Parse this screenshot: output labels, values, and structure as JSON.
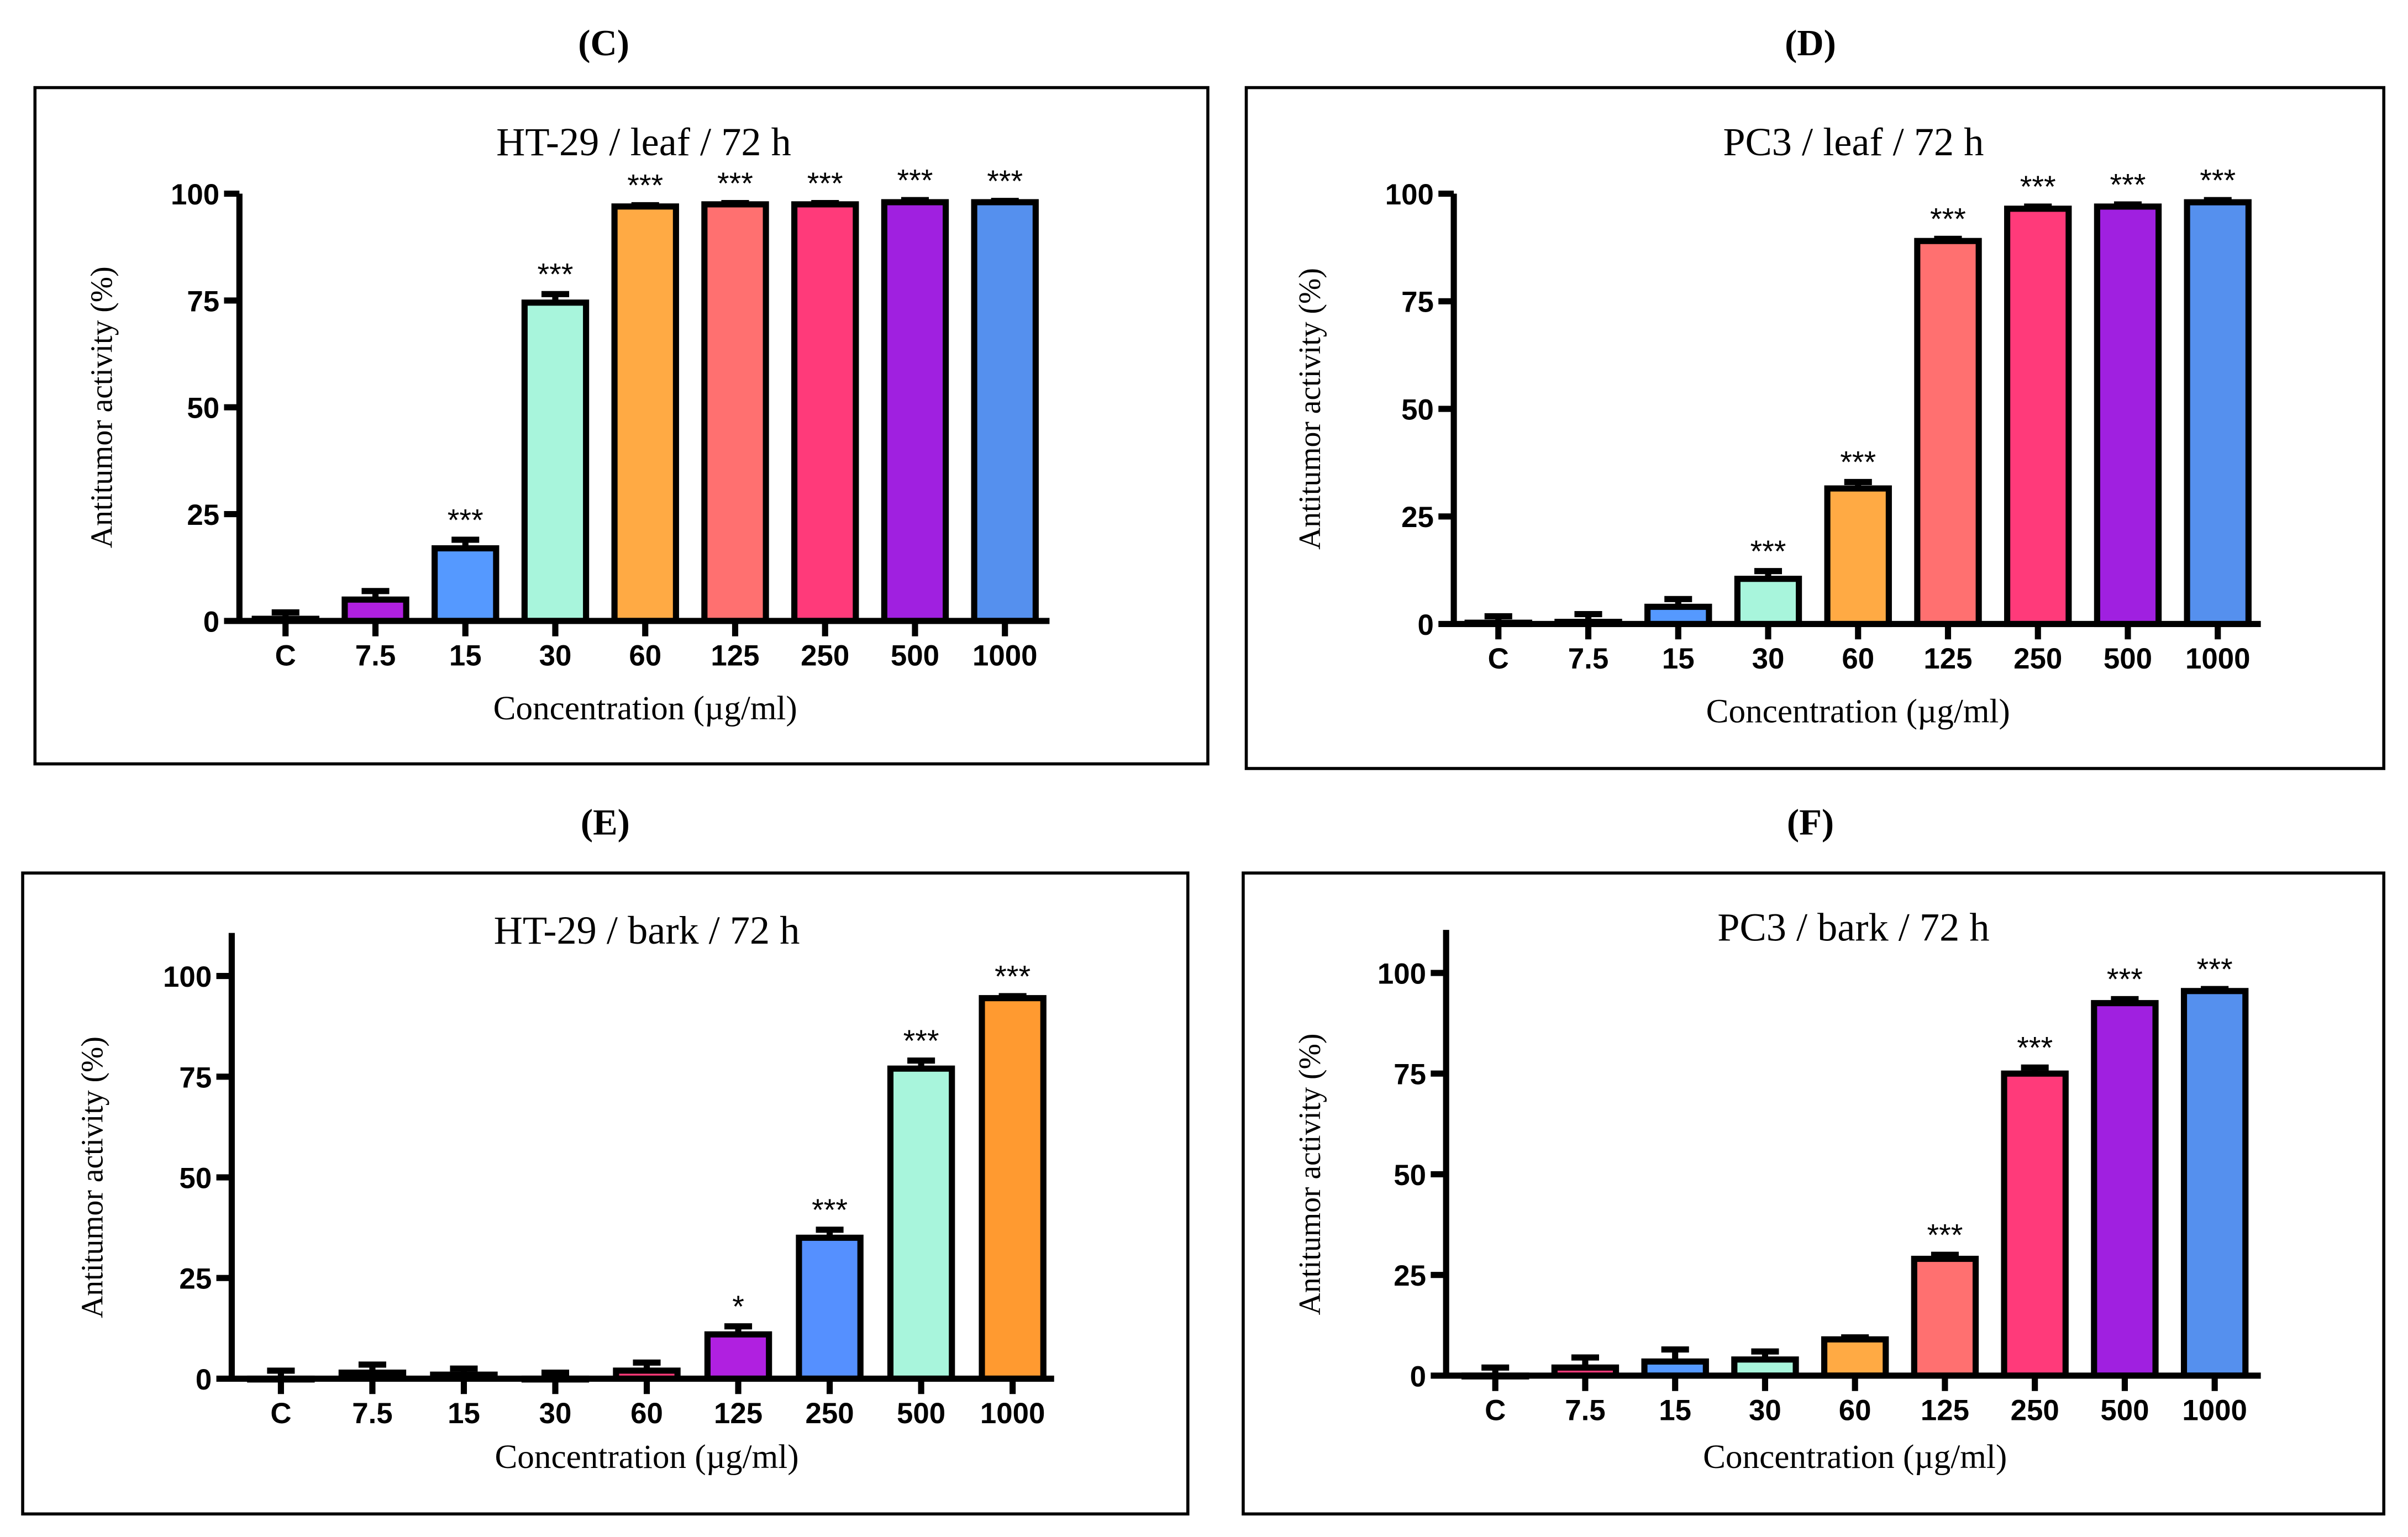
{
  "chart_data": [
    {
      "type": "bar",
      "panel": "(C)",
      "title": "HT-29 / leaf / 72 h",
      "xlabel": "Concentration (µg/ml)",
      "ylabel": "Antitumor activity (%)",
      "categories": [
        "C",
        "7.5",
        "15",
        "30",
        "60",
        "125",
        "250",
        "500",
        "1000"
      ],
      "values": [
        0.5,
        5,
        17,
        74.5,
        97,
        97.5,
        97.5,
        98,
        98
      ],
      "errors": [
        1.5,
        2,
        2,
        2,
        0.3,
        0.3,
        0.3,
        0.5,
        0.3
      ],
      "significance": [
        "",
        "",
        "***",
        "***",
        "***",
        "***",
        "***",
        "***",
        "***"
      ],
      "colors": [
        "#ffffff",
        "#b020e0",
        "#5599ff",
        "#a8f5dc",
        "#ffaa44",
        "#ff7070",
        "#ff3a7a",
        "#a020e0",
        "#5590ee"
      ],
      "yticks": [
        0,
        25,
        50,
        75,
        100
      ],
      "ylim": [
        0,
        100
      ]
    },
    {
      "type": "bar",
      "panel": "(D)",
      "title": "PC3 / leaf / 72 h",
      "xlabel": "Concentration (µg/ml)",
      "ylabel": "Antitumor activity (%)",
      "categories": [
        "C",
        "7.5",
        "15",
        "30",
        "60",
        "125",
        "250",
        "500",
        "1000"
      ],
      "values": [
        0.3,
        0.5,
        4,
        10.5,
        31.5,
        89,
        96.5,
        97,
        98
      ],
      "errors": [
        1.5,
        1.8,
        1.8,
        1.8,
        1.5,
        0.5,
        0.5,
        0.5,
        0.5
      ],
      "significance": [
        "",
        "",
        "",
        "***",
        "***",
        "***",
        "***",
        "***",
        "***"
      ],
      "colors": [
        "#ffffff",
        "#b020e0",
        "#5599ff",
        "#a8f5dc",
        "#ffaa44",
        "#ff7070",
        "#ff3a7a",
        "#a020e0",
        "#5590ee"
      ],
      "yticks": [
        0,
        25,
        50,
        75,
        100
      ],
      "ylim": [
        0,
        100
      ]
    },
    {
      "type": "bar",
      "panel": "(E)",
      "title": "HT-29 / bark / 72 h",
      "xlabel": "Concentration (µg/ml)",
      "ylabel": "Antitumor activity (%)",
      "categories": [
        "C",
        "7.5",
        "15",
        "30",
        "60",
        "125",
        "250",
        "500",
        "1000"
      ],
      "values": [
        0,
        1.5,
        1,
        0,
        2,
        11,
        35,
        77,
        94.5
      ],
      "errors": [
        2,
        2,
        1.5,
        1.5,
        2,
        2,
        2,
        2,
        0.5
      ],
      "significance": [
        "",
        "",
        "",
        "",
        "",
        "*",
        "***",
        "***",
        "***"
      ],
      "colors": [
        "#ffffff",
        "#b020e0",
        "#5599ff",
        "#a8f5dc",
        "#ff3a7a",
        "#b020e0",
        "#5590ff",
        "#a8f5dc",
        "#ff9a30"
      ],
      "yticks": [
        0,
        25,
        50,
        75,
        100
      ],
      "ylim": [
        0,
        110
      ]
    },
    {
      "type": "bar",
      "panel": "(F)",
      "title": "PC3 / bark / 72 h",
      "xlabel": "Concentration (µg/ml)",
      "ylabel": "Antitumor activity (%)",
      "categories": [
        "C",
        "7.5",
        "15",
        "30",
        "60",
        "125",
        "250",
        "500",
        "1000"
      ],
      "values": [
        0,
        2,
        3.5,
        4,
        9,
        29,
        75,
        92.5,
        95.5
      ],
      "errors": [
        2,
        2.5,
        3,
        2,
        0.5,
        1,
        1.5,
        1,
        0.5
      ],
      "significance": [
        "",
        "",
        "",
        "",
        "",
        "***",
        "***",
        "***",
        "***"
      ],
      "colors": [
        "#ffffff",
        "#ff3a7a",
        "#5599ff",
        "#a8f5dc",
        "#ffaa44",
        "#ff7070",
        "#ff3a7a",
        "#a020e0",
        "#5590ee"
      ],
      "yticks": [
        0,
        25,
        50,
        75,
        100
      ],
      "ylim": [
        0,
        110
      ]
    }
  ]
}
